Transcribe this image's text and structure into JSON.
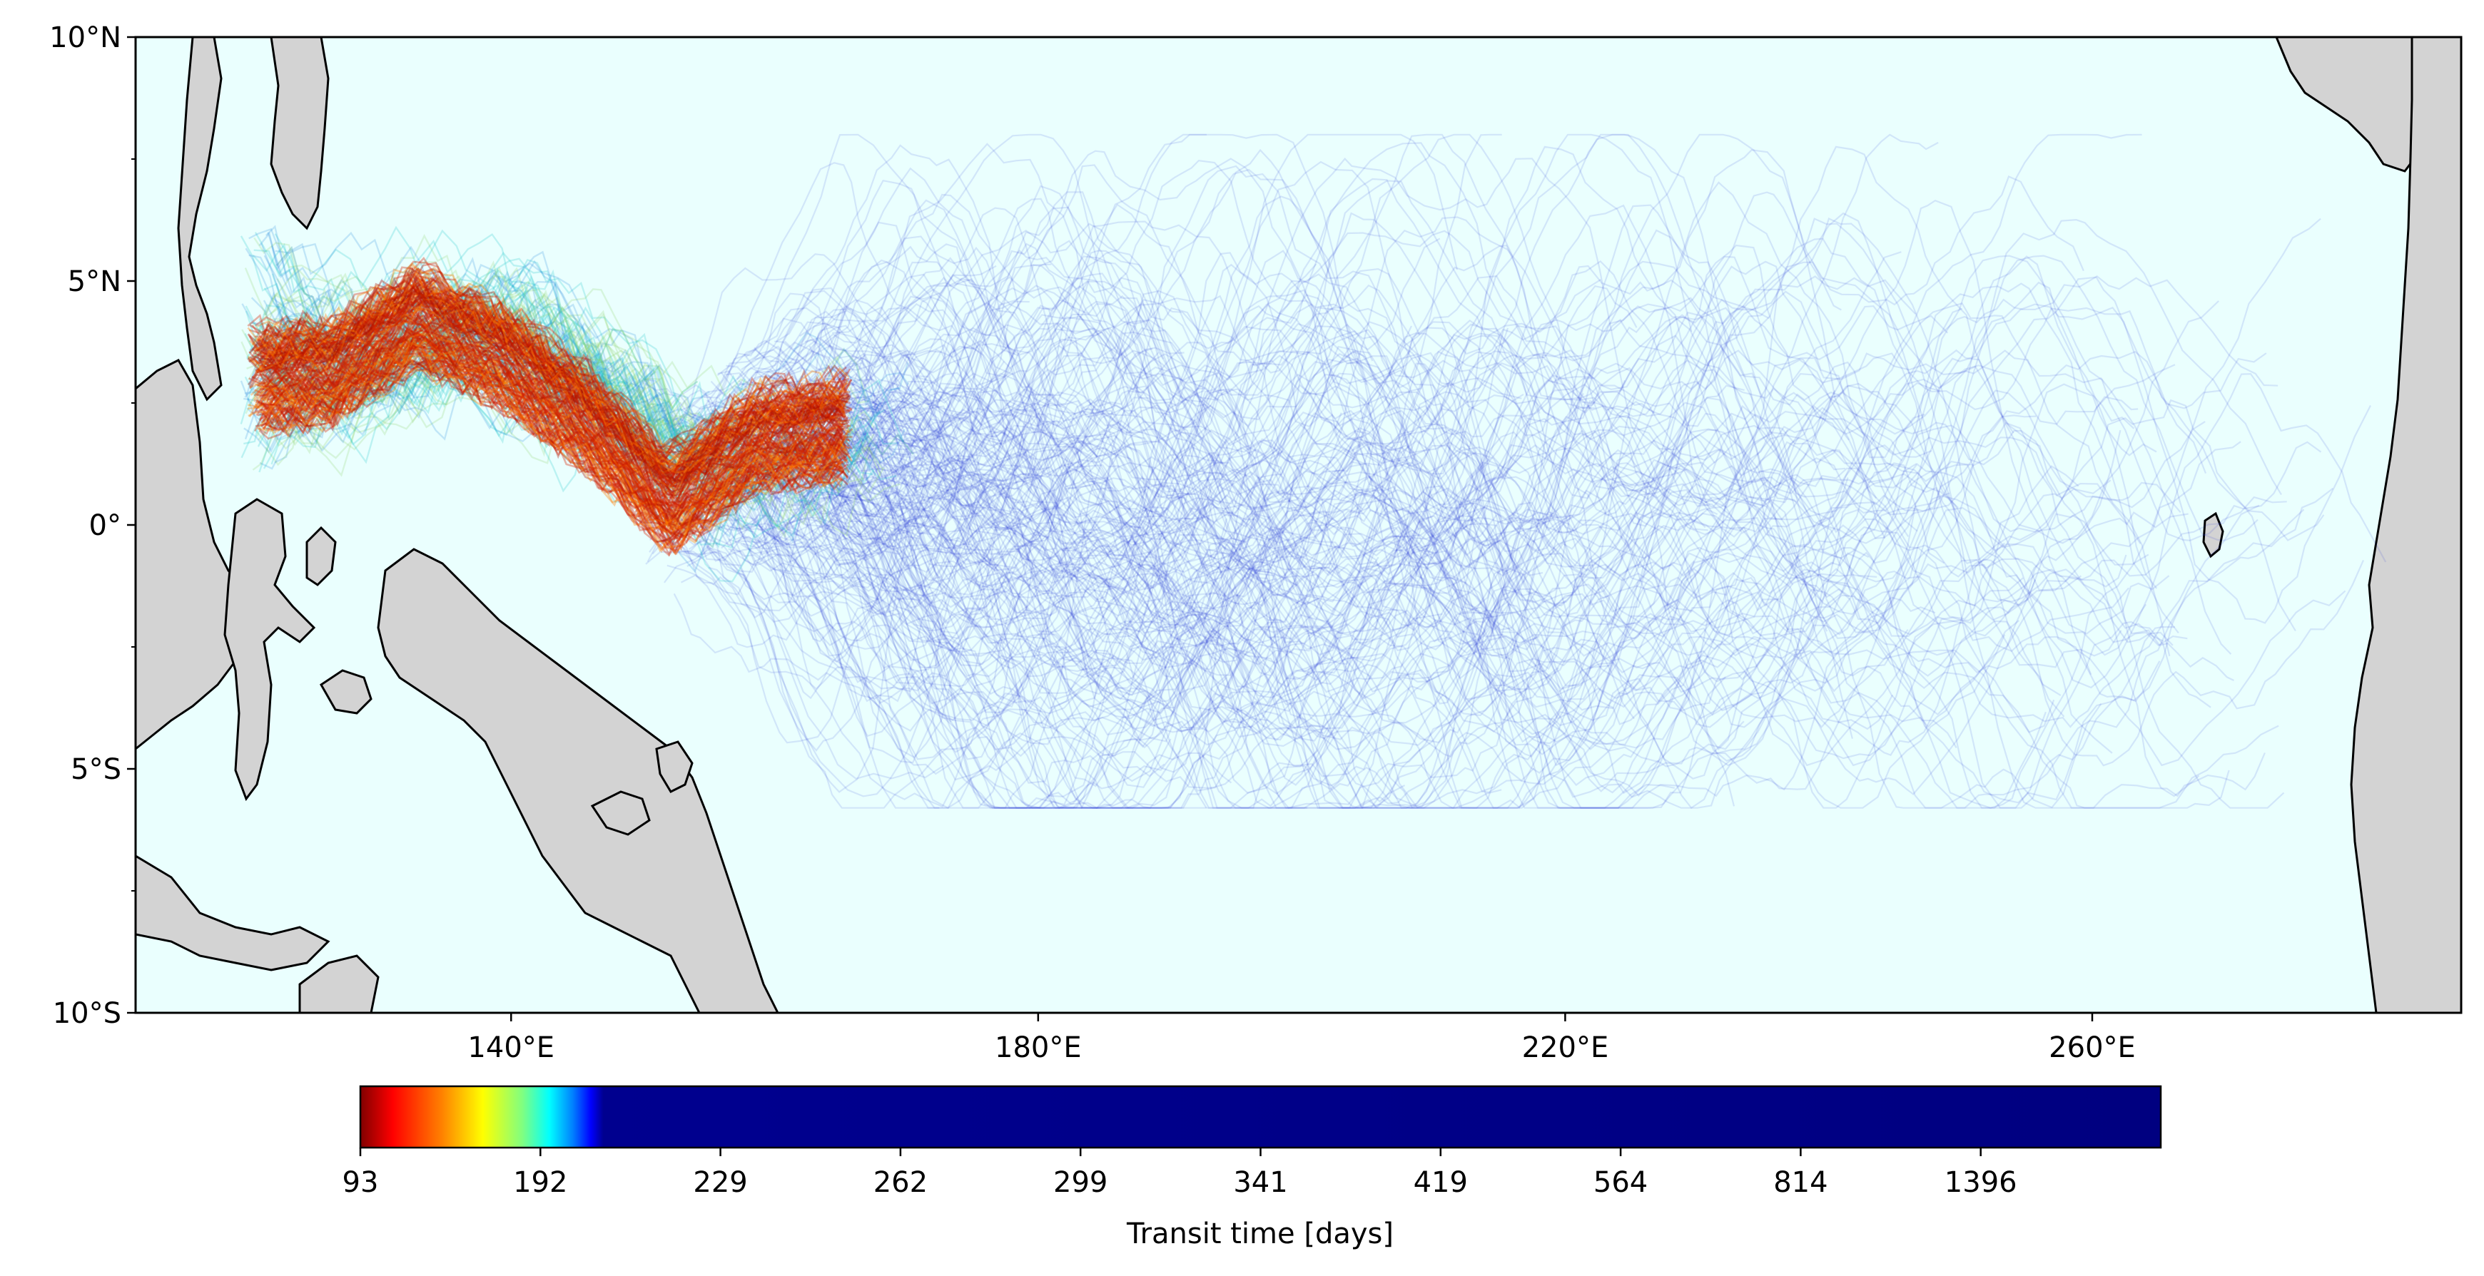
{
  "map": {
    "type": "trajectory-map",
    "projection": "plate-carree",
    "lon_range_deg_east": [
      111.5,
      288.0
    ],
    "lat_range_deg": [
      -10,
      10
    ],
    "ocean_color": "#eafffe",
    "land_color": "#d3d3d3",
    "coastline_color": "#000000",
    "x_ticks": [
      {
        "value": 140,
        "label": "140°E"
      },
      {
        "value": 180,
        "label": "180°E"
      },
      {
        "value": 220,
        "label": "220°E"
      },
      {
        "value": 260,
        "label": "260°E"
      }
    ],
    "y_ticks": [
      {
        "value": 10,
        "label": "10°N"
      },
      {
        "value": 5,
        "label": "5°N"
      },
      {
        "value": 0,
        "label": "0°"
      },
      {
        "value": -5,
        "label": "5°S"
      },
      {
        "value": -10,
        "label": "10°S"
      }
    ],
    "release_region": {
      "lon_range": [
        119.5,
        165
      ],
      "lat_range": [
        1,
        6
      ]
    },
    "trajectory_core": {
      "lon_range": [
        120,
        165
      ],
      "lat_center": [
        3.0,
        3.2,
        4.3,
        3.5,
        2.2,
        0.5,
        1.8,
        2.0
      ]
    },
    "spread_region": {
      "lon_range": [
        150,
        283
      ],
      "lat_range": [
        -5.5,
        8
      ]
    }
  },
  "colorbar": {
    "colormap": "jet",
    "title": "Transit time [days]",
    "tick_labels": [
      "93",
      "192",
      "229",
      "262",
      "299",
      "341",
      "419",
      "564",
      "814",
      "1396"
    ],
    "color_stops": [
      {
        "offset": 0.0,
        "color": "#800000"
      },
      {
        "offset": 0.018,
        "color": "#ff0000"
      },
      {
        "offset": 0.045,
        "color": "#ff8000"
      },
      {
        "offset": 0.068,
        "color": "#ffff00"
      },
      {
        "offset": 0.09,
        "color": "#80ff80"
      },
      {
        "offset": 0.105,
        "color": "#00ffff"
      },
      {
        "offset": 0.118,
        "color": "#0080ff"
      },
      {
        "offset": 0.128,
        "color": "#0000ff"
      },
      {
        "offset": 0.135,
        "color": "#00008f"
      },
      {
        "offset": 1.0,
        "color": "#000080"
      }
    ]
  }
}
